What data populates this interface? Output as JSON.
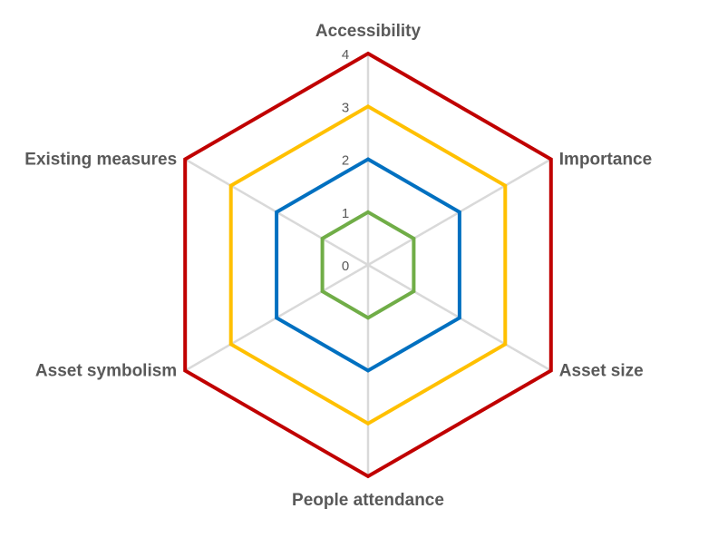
{
  "chart_data": {
    "type": "radar",
    "axes": [
      "Accessibility",
      "Importance",
      "Asset size",
      "People attendance",
      "Asset symbolism",
      "Existing measures"
    ],
    "rlim": [
      0,
      4
    ],
    "ticks": [
      "0",
      "1",
      "2",
      "3",
      "4"
    ],
    "grid": true,
    "legend": "none",
    "series": [
      {
        "values": [
          4,
          4,
          4,
          4,
          4,
          4
        ],
        "color": "#C00000"
      },
      {
        "values": [
          3,
          3,
          3,
          3,
          3,
          3
        ],
        "color": "#FFC000"
      },
      {
        "values": [
          2,
          2,
          2,
          2,
          2,
          2
        ],
        "color": "#0070C0"
      },
      {
        "values": [
          1,
          1,
          1,
          1,
          1,
          1
        ],
        "color": "#70AD47"
      }
    ],
    "gridline_color": "#D9D9D9"
  }
}
